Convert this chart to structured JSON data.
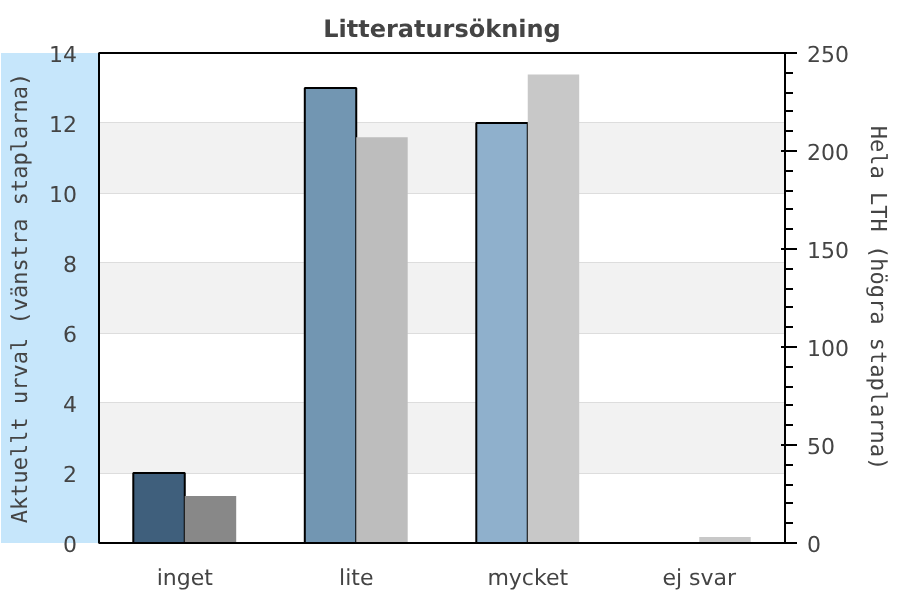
{
  "chart_data": {
    "type": "bar",
    "title": "Litteratursökning",
    "categories": [
      "inget",
      "lite",
      "mycket",
      "ej svar"
    ],
    "series": [
      {
        "colors": [
          "#3f5f7c",
          "#7296b2",
          "#8fb0cc",
          "#8fb0cc"
        ],
        "values": [
          2,
          13,
          12,
          0
        ]
      },
      {
        "colors": [
          "#888888",
          "#bdbdbd",
          "#c8c8c8",
          "#c8c8c8"
        ],
        "values": [
          24,
          207,
          239,
          3
        ],
        "axis": "y2"
      }
    ],
    "ylabel": "Aktuellt urval (vänstra staplarna)",
    "y2label": "Hela LTH (högra staplarna)",
    "ylim": [
      0,
      14
    ],
    "yticks": [
      0,
      2,
      4,
      6,
      8,
      10,
      12,
      14
    ],
    "y2lim": [
      0,
      250
    ],
    "y2ticks": [
      0,
      50,
      100,
      150,
      200,
      250
    ],
    "grid": "y",
    "bands": [
      {
        "axis": "y",
        "from": 2,
        "to": 4,
        "color": "#f2f2f2"
      },
      {
        "axis": "y",
        "from": 6,
        "to": 8,
        "color": "#f2f2f2"
      },
      {
        "axis": "y",
        "from": 10,
        "to": 12,
        "color": "#f2f2f2"
      }
    ]
  }
}
